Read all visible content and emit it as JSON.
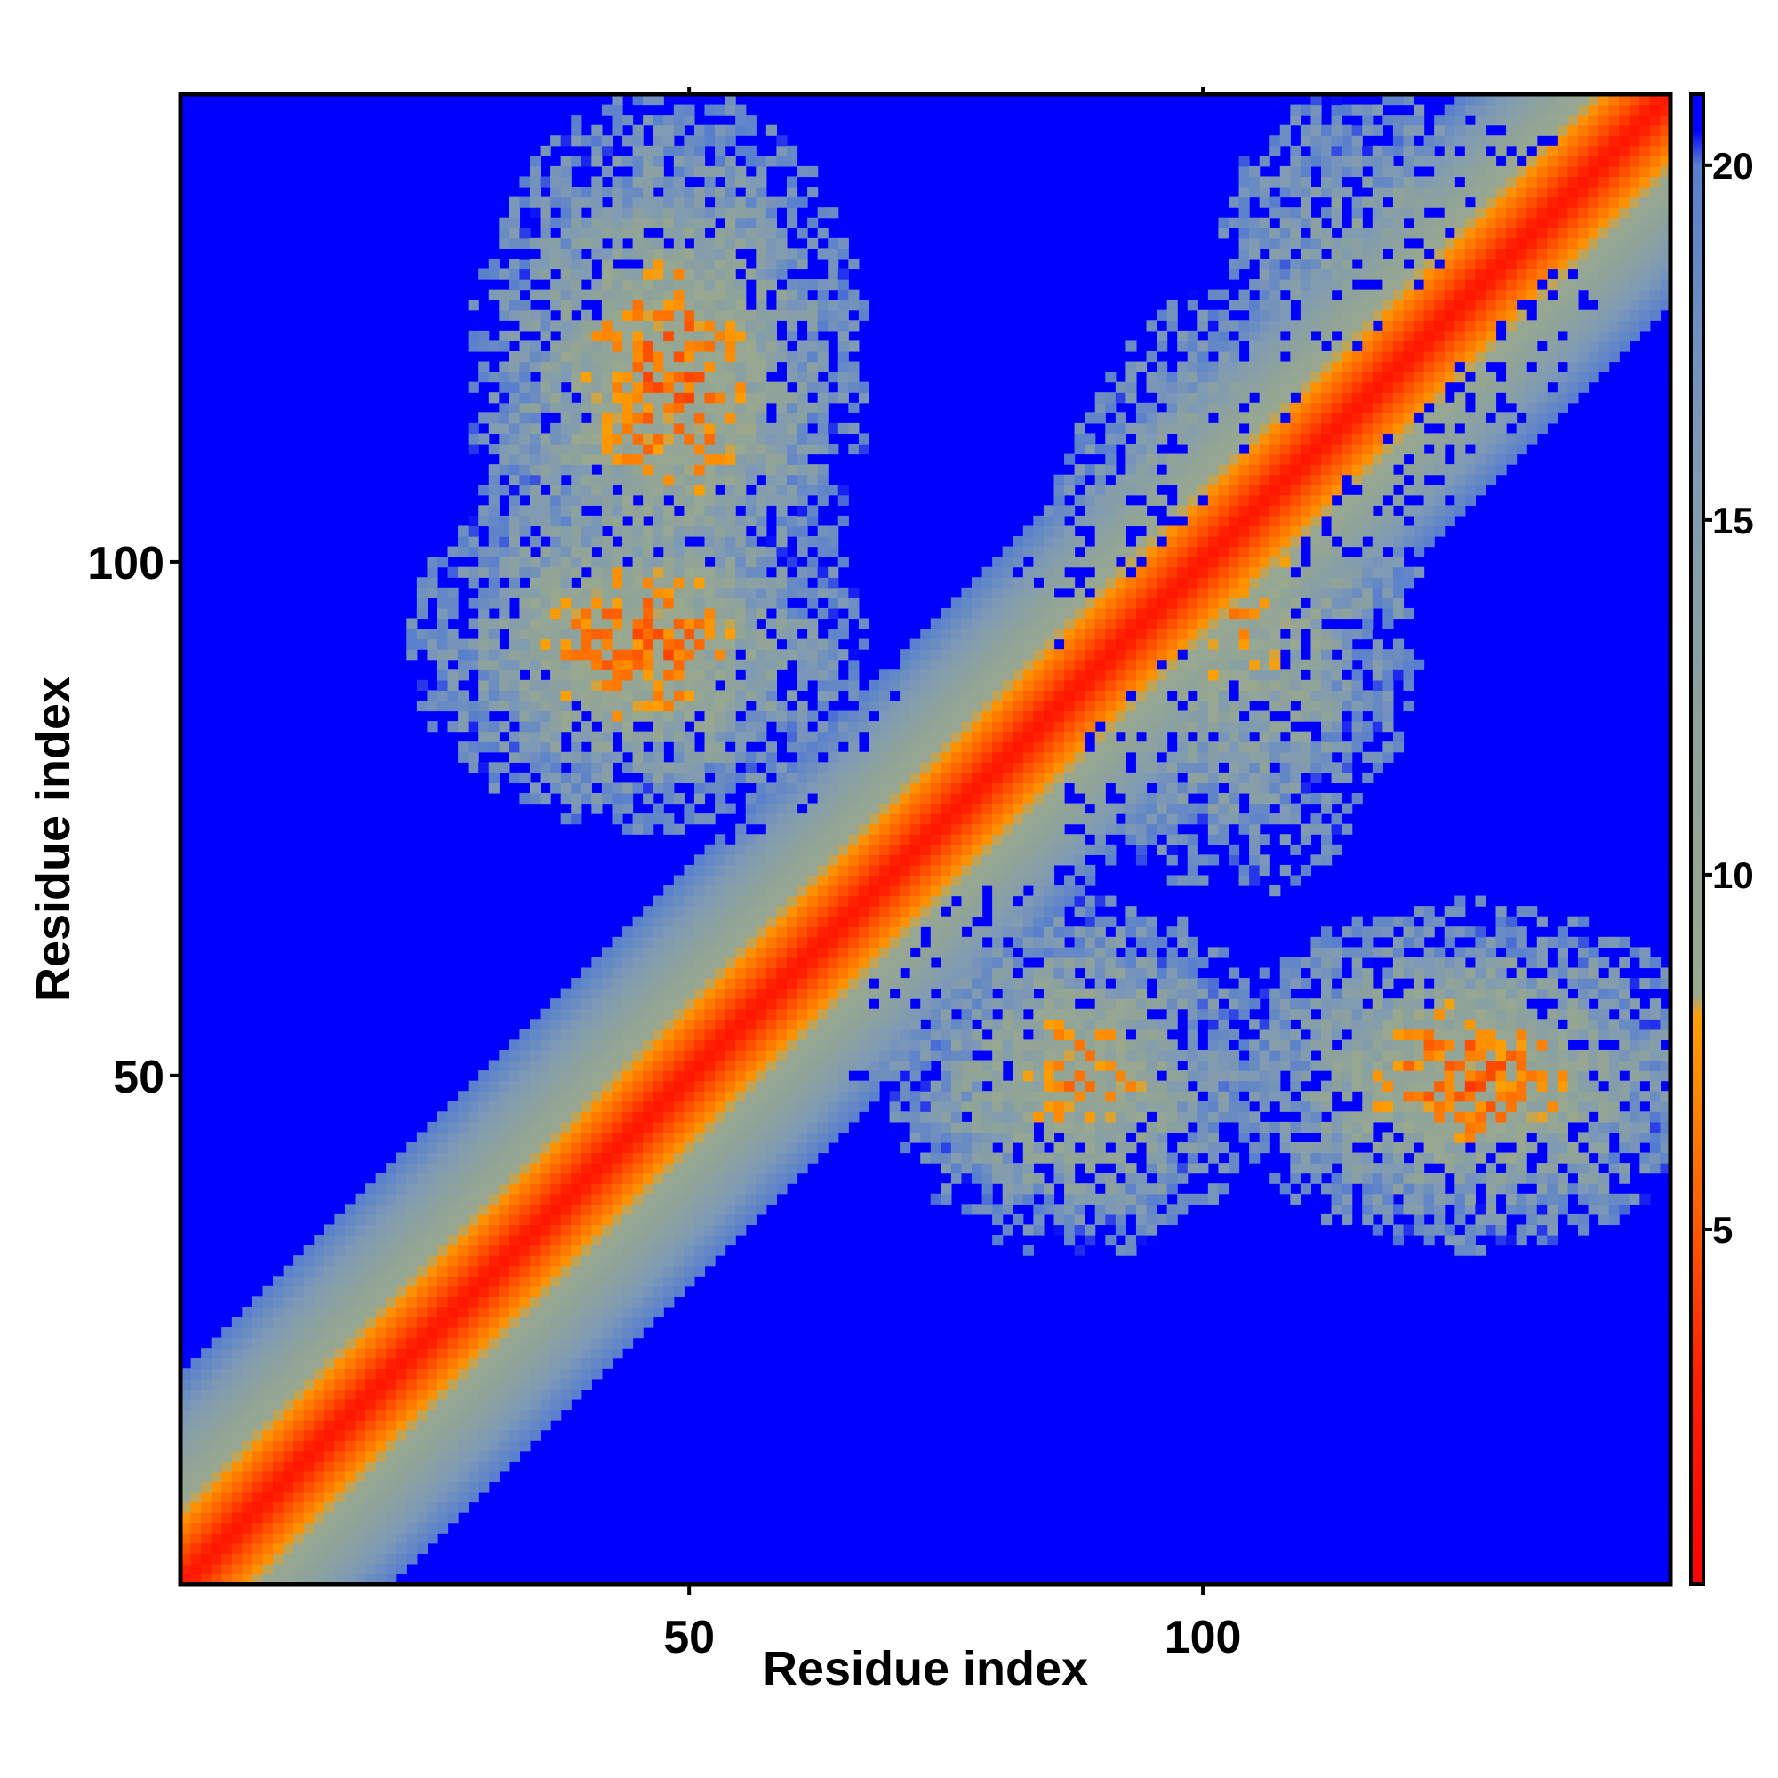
{
  "chart_data": {
    "type": "heatmap",
    "title": "",
    "xlabel": "Residue index",
    "ylabel": "Residue index",
    "x_range": [
      1,
      145
    ],
    "y_range": [
      1,
      145
    ],
    "x_ticks": [
      {
        "value": 50,
        "label": "50"
      },
      {
        "value": 100,
        "label": "100"
      }
    ],
    "y_ticks": [
      {
        "value": 50,
        "label": "50"
      },
      {
        "value": 100,
        "label": "100"
      }
    ],
    "colorbar": {
      "range": [
        0,
        21
      ],
      "ticks": [
        {
          "value": 5,
          "label": "5"
        },
        {
          "value": 10,
          "label": "10"
        },
        {
          "value": 15,
          "label": "15"
        },
        {
          "value": 20,
          "label": "20"
        }
      ],
      "stops": [
        {
          "value": 0,
          "color": "#ff0000"
        },
        {
          "value": 3,
          "color": "#ff2200"
        },
        {
          "value": 5,
          "color": "#ff5a00"
        },
        {
          "value": 8,
          "color": "#ffa000"
        },
        {
          "value": 8.3,
          "color": "#9aa88e"
        },
        {
          "value": 12,
          "color": "#8fa39a"
        },
        {
          "value": 16,
          "color": "#7f9ab4"
        },
        {
          "value": 20,
          "color": "#587fce"
        },
        {
          "value": 20.5,
          "color": "#0000ff"
        },
        {
          "value": 21,
          "color": "#0000ff"
        }
      ]
    },
    "background_color": "#0000ff",
    "structure": {
      "diagonal": "distance increases with |i-j|; red core, orange, then gray-green band",
      "contact_regions": [
        {
          "x": [
            30,
            75
          ],
          "y": [
            80,
            145
          ],
          "note": "antiparallel contact lobe, upper-left"
        },
        {
          "x": [
            25,
            70
          ],
          "y": [
            75,
            110
          ],
          "note": "contact lobe, left-middle"
        },
        {
          "x": [
            75,
            105
          ],
          "y": [
            30,
            65
          ],
          "note": "lower-middle lobe"
        },
        {
          "x": [
            110,
            145
          ],
          "y": [
            35,
            65
          ],
          "note": "lower-right lobe"
        },
        {
          "x": [
            85,
            120
          ],
          "y": [
            70,
            125
          ],
          "note": "right-middle lobe"
        }
      ]
    }
  }
}
